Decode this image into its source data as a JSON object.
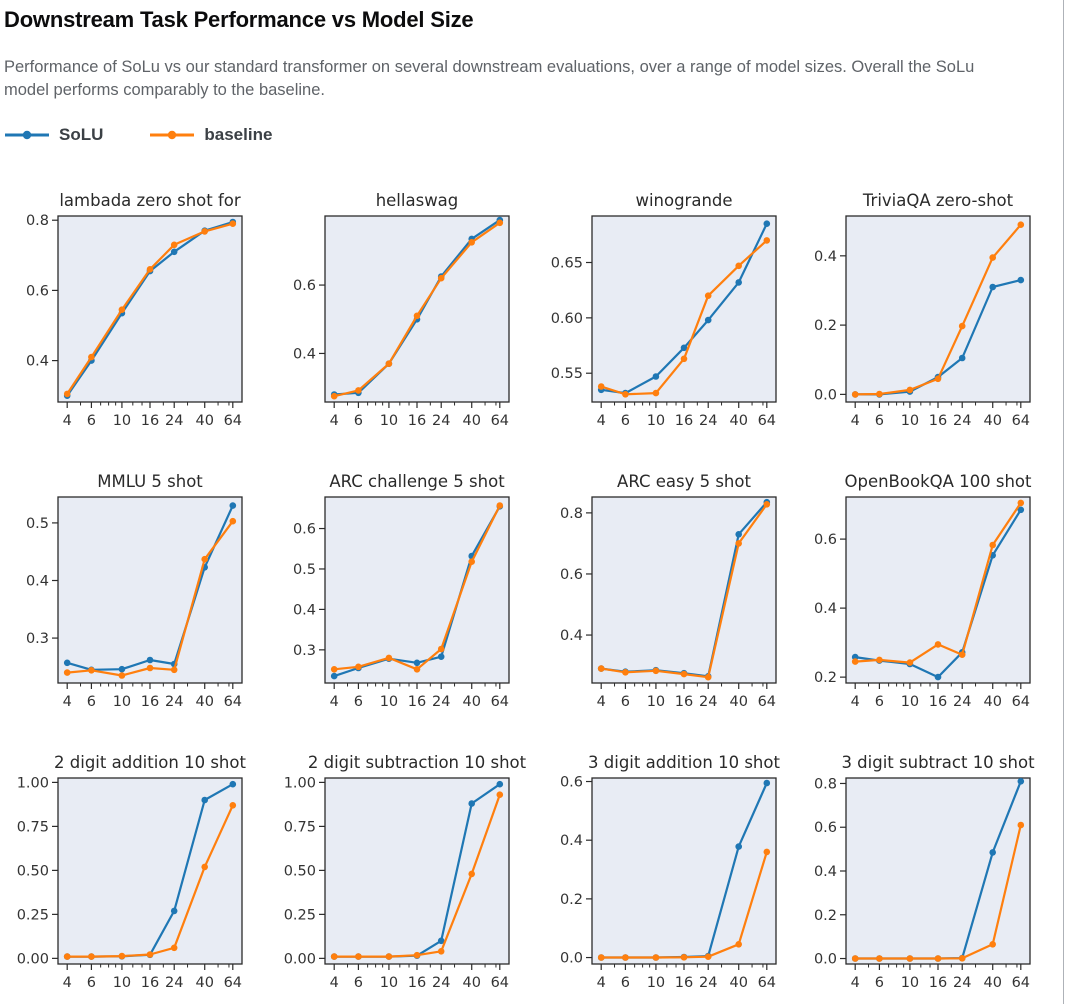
{
  "header": {
    "title": "Downstream Task Performance vs Model Size",
    "subtitle": "Performance of SoLu vs our standard transformer on several downstream evaluations, over a range of model sizes. Overall the SoLu model performs comparably to the baseline."
  },
  "legend": {
    "items": [
      {
        "label": "SoLU",
        "color": "#1f77b4"
      },
      {
        "label": "baseline",
        "color": "#ff7f0e"
      }
    ]
  },
  "colors": {
    "solu": "#1f77b4",
    "baseline": "#ff7f0e",
    "plot_bg": "#e8ecf4",
    "spine": "#2b2b2b",
    "tick": "#2b2b2b",
    "tick_label": "#333333",
    "chart_title": "#2a2a2a"
  },
  "axis": {
    "x_values": [
      4,
      6,
      10,
      16,
      24,
      40,
      64
    ],
    "x_tick_labels": [
      "4",
      "6",
      "10",
      "16",
      "24",
      "40",
      "64"
    ],
    "x_minor_ticks": [
      5,
      7,
      8,
      9,
      12,
      14,
      20,
      30,
      50,
      60
    ],
    "x_scale": "log"
  },
  "chart_data": [
    {
      "type": "line",
      "title": "lambada zero shot for",
      "x": [
        4,
        6,
        10,
        16,
        24,
        40,
        64
      ],
      "ylim": [
        0.282,
        0.812
      ],
      "yticks": [
        0.4,
        0.6,
        0.8
      ],
      "ytick_labels": [
        "0.4",
        "0.6",
        "0.8"
      ],
      "series": [
        {
          "name": "SoLU",
          "values": [
            0.3,
            0.4,
            0.535,
            0.655,
            0.71,
            0.77,
            0.795
          ]
        },
        {
          "name": "baseline",
          "values": [
            0.305,
            0.41,
            0.545,
            0.66,
            0.73,
            0.768,
            0.79
          ]
        }
      ]
    },
    {
      "type": "line",
      "title": "hellaswag",
      "x": [
        4,
        6,
        10,
        16,
        24,
        40,
        64
      ],
      "ylim": [
        0.258,
        0.802
      ],
      "yticks": [
        0.4,
        0.6
      ],
      "ytick_labels": [
        "0.4",
        "0.6"
      ],
      "series": [
        {
          "name": "SoLU",
          "values": [
            0.28,
            0.285,
            0.37,
            0.5,
            0.625,
            0.735,
            0.79
          ]
        },
        {
          "name": "baseline",
          "values": [
            0.275,
            0.292,
            0.37,
            0.51,
            0.62,
            0.725,
            0.782
          ]
        }
      ]
    },
    {
      "type": "line",
      "title": "winogrande",
      "x": [
        4,
        6,
        10,
        16,
        24,
        40,
        64
      ],
      "ylim": [
        0.524,
        0.692
      ],
      "yticks": [
        0.55,
        0.6,
        0.65
      ],
      "ytick_labels": [
        "0.55",
        "0.60",
        "0.65"
      ],
      "series": [
        {
          "name": "SoLU",
          "values": [
            0.535,
            0.532,
            0.547,
            0.573,
            0.598,
            0.632,
            0.685
          ]
        },
        {
          "name": "baseline",
          "values": [
            0.538,
            0.531,
            0.532,
            0.563,
            0.62,
            0.647,
            0.67
          ]
        }
      ]
    },
    {
      "type": "line",
      "title": "TriviaQA zero-shot",
      "x": [
        4,
        6,
        10,
        16,
        24,
        40,
        64
      ],
      "ylim": [
        -0.022,
        0.515
      ],
      "yticks": [
        0.0,
        0.2,
        0.4
      ],
      "ytick_labels": [
        "0.0",
        "0.2",
        "0.4"
      ],
      "series": [
        {
          "name": "SoLU",
          "values": [
            0.0,
            0.0,
            0.008,
            0.05,
            0.105,
            0.31,
            0.33
          ]
        },
        {
          "name": "baseline",
          "values": [
            0.0,
            0.001,
            0.013,
            0.045,
            0.197,
            0.395,
            0.49
          ]
        }
      ]
    },
    {
      "type": "line",
      "title": "MMLU 5 shot",
      "x": [
        4,
        6,
        10,
        16,
        24,
        40,
        64
      ],
      "ylim": [
        0.222,
        0.545
      ],
      "yticks": [
        0.3,
        0.4,
        0.5
      ],
      "ytick_labels": [
        "0.3",
        "0.4",
        "0.5"
      ],
      "series": [
        {
          "name": "SoLU",
          "values": [
            0.257,
            0.245,
            0.246,
            0.262,
            0.255,
            0.423,
            0.53
          ]
        },
        {
          "name": "baseline",
          "values": [
            0.24,
            0.244,
            0.235,
            0.248,
            0.245,
            0.437,
            0.503
          ]
        }
      ]
    },
    {
      "type": "line",
      "title": "ARC challenge 5 shot",
      "x": [
        4,
        6,
        10,
        16,
        24,
        40,
        64
      ],
      "ylim": [
        0.218,
        0.678
      ],
      "yticks": [
        0.3,
        0.4,
        0.5,
        0.6
      ],
      "ytick_labels": [
        "0.3",
        "0.4",
        "0.5",
        "0.6"
      ],
      "series": [
        {
          "name": "SoLU",
          "values": [
            0.235,
            0.255,
            0.278,
            0.268,
            0.283,
            0.532,
            0.655
          ]
        },
        {
          "name": "baseline",
          "values": [
            0.252,
            0.258,
            0.28,
            0.252,
            0.302,
            0.518,
            0.657
          ]
        }
      ]
    },
    {
      "type": "line",
      "title": "ARC easy 5 shot",
      "x": [
        4,
        6,
        10,
        16,
        24,
        40,
        64
      ],
      "ylim": [
        0.243,
        0.852
      ],
      "yticks": [
        0.4,
        0.6,
        0.8
      ],
      "ytick_labels": [
        "0.4",
        "0.6",
        "0.8"
      ],
      "series": [
        {
          "name": "SoLU",
          "values": [
            0.29,
            0.28,
            0.285,
            0.275,
            0.265,
            0.73,
            0.835
          ]
        },
        {
          "name": "baseline",
          "values": [
            0.29,
            0.278,
            0.283,
            0.272,
            0.262,
            0.7,
            0.828
          ]
        }
      ]
    },
    {
      "type": "line",
      "title": "OpenBookQA 100 shot",
      "x": [
        4,
        6,
        10,
        16,
        24,
        40,
        64
      ],
      "ylim": [
        0.183,
        0.722
      ],
      "yticks": [
        0.2,
        0.4,
        0.6
      ],
      "ytick_labels": [
        "0.2",
        "0.4",
        "0.6"
      ],
      "series": [
        {
          "name": "SoLU",
          "values": [
            0.258,
            0.248,
            0.238,
            0.2,
            0.272,
            0.553,
            0.685
          ]
        },
        {
          "name": "baseline",
          "values": [
            0.245,
            0.25,
            0.242,
            0.295,
            0.265,
            0.583,
            0.705
          ]
        }
      ]
    },
    {
      "type": "line",
      "title": "2 digit addition 10 shot",
      "x": [
        4,
        6,
        10,
        16,
        24,
        40,
        64
      ],
      "ylim": [
        -0.032,
        1.025
      ],
      "yticks": [
        0.0,
        0.25,
        0.5,
        0.75,
        1.0
      ],
      "ytick_labels": [
        "0.00",
        "0.25",
        "0.50",
        "0.75",
        "1.00"
      ],
      "series": [
        {
          "name": "SoLU",
          "values": [
            0.01,
            0.01,
            0.012,
            0.02,
            0.27,
            0.9,
            0.99
          ]
        },
        {
          "name": "baseline",
          "values": [
            0.01,
            0.01,
            0.013,
            0.022,
            0.06,
            0.52,
            0.87
          ]
        }
      ]
    },
    {
      "type": "line",
      "title": "2 digit subtraction 10 shot",
      "x": [
        4,
        6,
        10,
        16,
        24,
        40,
        64
      ],
      "ylim": [
        -0.032,
        1.025
      ],
      "yticks": [
        0.0,
        0.25,
        0.5,
        0.75,
        1.0
      ],
      "ytick_labels": [
        "0.00",
        "0.25",
        "0.50",
        "0.75",
        "1.00"
      ],
      "series": [
        {
          "name": "SoLU",
          "values": [
            0.01,
            0.01,
            0.01,
            0.015,
            0.1,
            0.88,
            0.99
          ]
        },
        {
          "name": "baseline",
          "values": [
            0.01,
            0.01,
            0.01,
            0.018,
            0.04,
            0.48,
            0.93
          ]
        }
      ]
    },
    {
      "type": "line",
      "title": "3 digit addition 10 shot",
      "x": [
        4,
        6,
        10,
        16,
        24,
        40,
        64
      ],
      "ylim": [
        -0.022,
        0.612
      ],
      "yticks": [
        0.0,
        0.2,
        0.4,
        0.6
      ],
      "ytick_labels": [
        "0.0",
        "0.2",
        "0.4",
        "0.6"
      ],
      "series": [
        {
          "name": "SoLU",
          "values": [
            0.0,
            0.0,
            0.0,
            0.002,
            0.005,
            0.378,
            0.595
          ]
        },
        {
          "name": "baseline",
          "values": [
            0.0,
            0.0,
            0.0,
            0.001,
            0.003,
            0.045,
            0.36
          ]
        }
      ]
    },
    {
      "type": "line",
      "title": "3 digit subtract 10 shot",
      "x": [
        4,
        6,
        10,
        16,
        24,
        40,
        64
      ],
      "ylim": [
        -0.025,
        0.825
      ],
      "yticks": [
        0.0,
        0.2,
        0.4,
        0.6,
        0.8
      ],
      "ytick_labels": [
        "0.0",
        "0.2",
        "0.4",
        "0.6",
        "0.8"
      ],
      "series": [
        {
          "name": "SoLU",
          "values": [
            0.0,
            0.0,
            0.0,
            0.0,
            0.002,
            0.485,
            0.81
          ]
        },
        {
          "name": "baseline",
          "values": [
            0.0,
            0.0,
            0.0,
            0.0,
            0.001,
            0.065,
            0.61
          ]
        }
      ]
    }
  ]
}
